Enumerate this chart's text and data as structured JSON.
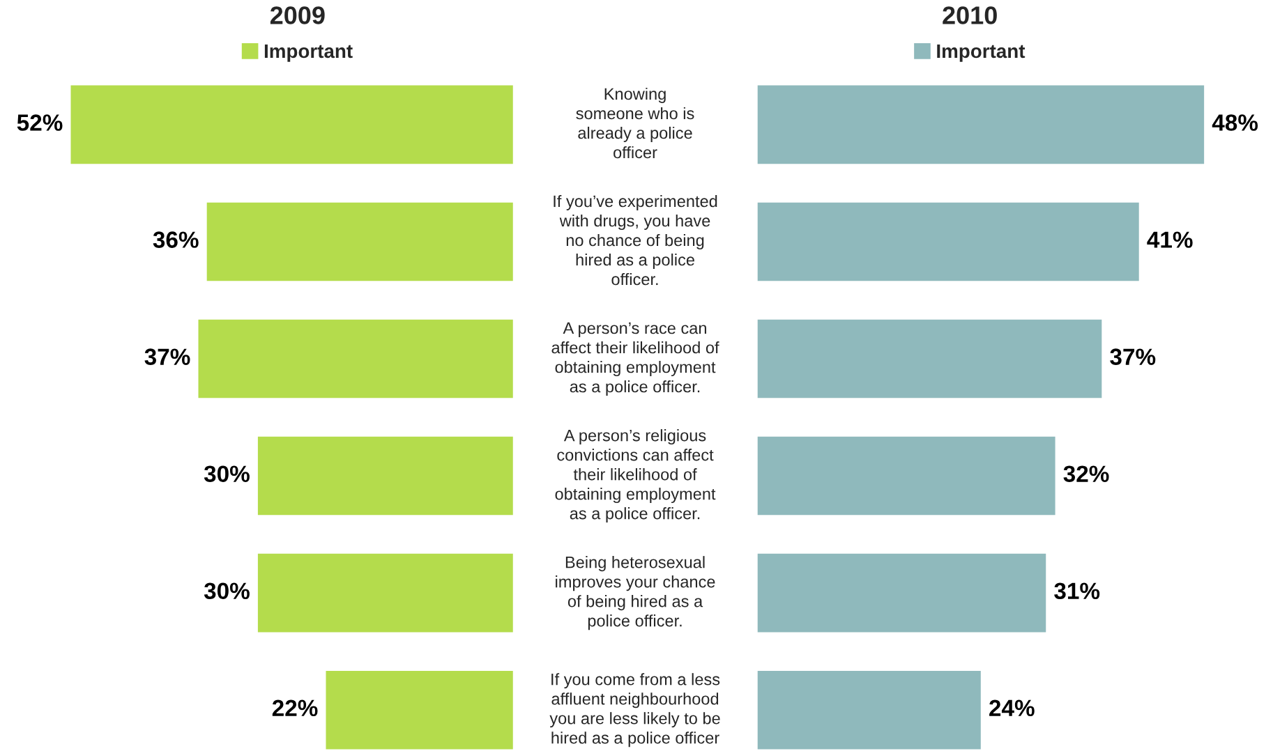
{
  "chart_data": [
    {
      "type": "bar",
      "orientation": "horizontal",
      "title": "2009",
      "legend": "top",
      "tick_labels": "y",
      "categories": [
        "Knowing\nsomeone who is\nalready a police\nofficer",
        "If you’ve experimented\nwith drugs, you have\nno chance of being\nhired as a police\nofficer.",
        "A person’s race can\naffect their likelihood of\nobtaining employment\nas a police officer.",
        "A person’s religious\nconvictions can affect\ntheir likelihood of\nobtaining employment\nas a police officer.",
        "Being heterosexual\nimproves your chance\nof being hired as a\npolice officer.",
        "If you come from a less\naffluent neighbourhood\nyou are less likely to be\nhired as a police officer"
      ],
      "series": [
        {
          "name": "Important",
          "color": "#b4dc4c",
          "values": [
            52,
            36,
            37,
            30,
            30,
            22
          ],
          "value_labels": [
            "52%",
            "36%",
            "37%",
            "30%",
            "30%",
            "22%"
          ]
        }
      ]
    },
    {
      "type": "bar",
      "orientation": "horizontal",
      "title": "2010",
      "legend": "top",
      "categories": [
        null,
        null,
        null,
        null,
        null,
        null
      ],
      "series": [
        {
          "name": "Important",
          "color": "#8fb9bc",
          "values": [
            48,
            41,
            37,
            32,
            31,
            24
          ],
          "value_labels": [
            "48%",
            "41%",
            "37%",
            "32%",
            "31%",
            "24%"
          ]
        }
      ]
    }
  ]
}
